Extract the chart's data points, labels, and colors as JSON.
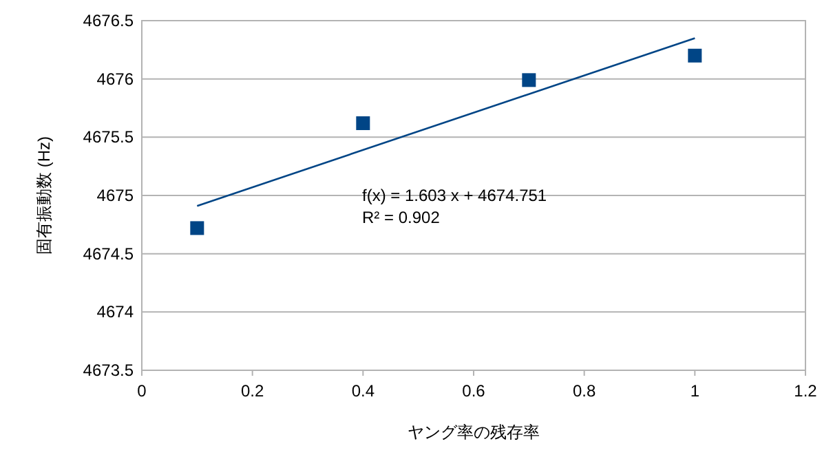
{
  "chart_data": {
    "type": "scatter",
    "xlabel": "ヤング率の残存率",
    "ylabel": "固有振動数 (Hz)",
    "xlim": [
      0,
      1.2
    ],
    "xticks": [
      0,
      0.2,
      0.4,
      0.6,
      0.8,
      1,
      1.2
    ],
    "ylim": [
      4673.5,
      4676.5
    ],
    "yticks": [
      4673.5,
      4674,
      4674.5,
      4675,
      4675.5,
      4676,
      4676.5
    ],
    "grid": "y",
    "series": [
      {
        "marker": "square",
        "color": "#004586",
        "x": [
          0.1,
          0.4,
          0.7,
          1.0
        ],
        "values": [
          4674.72,
          4675.62,
          4675.99,
          4676.2
        ]
      },
      {
        "type": "line",
        "color": "#004586",
        "x": [
          0.1,
          1.0
        ],
        "values": [
          4674.91,
          4676.35
        ]
      }
    ],
    "annotations": [
      "f(x) = 1.603 x + 4674.751",
      "R² = 0.902"
    ]
  }
}
